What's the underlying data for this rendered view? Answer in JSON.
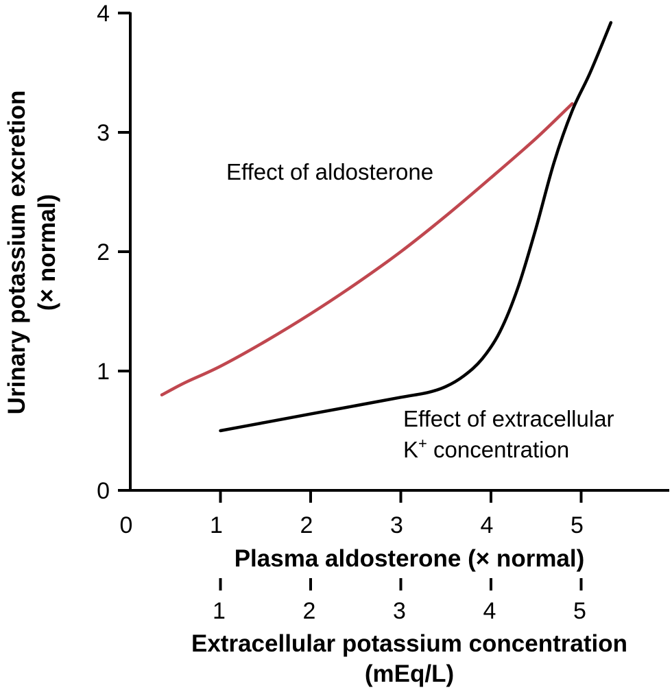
{
  "chart_data": {
    "type": "line",
    "ylabel_line1": "Urinary potassium excretion",
    "ylabel_line2": "(× normal)",
    "xlabel": "Plasma aldosterone (× normal)",
    "xlabel2_line1": "Extracellular potassium concentration",
    "xlabel2_line2": "(mEq/L)",
    "xlim": [
      0,
      6
    ],
    "ylim": [
      0,
      4
    ],
    "xticks": [
      "0",
      "1",
      "2",
      "3",
      "4",
      "5"
    ],
    "xticks2": [
      "1",
      "2",
      "3",
      "4",
      "5"
    ],
    "yticks": [
      "0",
      "1",
      "2",
      "3",
      "4"
    ],
    "series": [
      {
        "name": "Effect of aldosterone",
        "color": "#c0474f",
        "x": [
          0.35,
          0.6,
          1.0,
          1.5,
          2.0,
          2.5,
          3.0,
          3.5,
          4.0,
          4.5,
          4.9
        ],
        "y": [
          0.8,
          0.9,
          1.04,
          1.25,
          1.48,
          1.73,
          2.0,
          2.3,
          2.62,
          2.95,
          3.24
        ]
      },
      {
        "name": "Effect of extracellular K⁺ concentration",
        "color": "#000000",
        "x": [
          1.0,
          1.5,
          2.0,
          2.5,
          3.0,
          3.3,
          3.5,
          3.7,
          3.9,
          4.1,
          4.3,
          4.5,
          4.7,
          4.9,
          5.1,
          5.33
        ],
        "y": [
          0.5,
          0.57,
          0.64,
          0.71,
          0.78,
          0.82,
          0.87,
          0.96,
          1.1,
          1.33,
          1.7,
          2.2,
          2.75,
          3.18,
          3.5,
          3.92
        ]
      }
    ],
    "annotations": {
      "aldosterone": "Effect of aldosterone",
      "potassium_line1": "Effect of extracellular",
      "potassium_line2_prefix": "K",
      "potassium_line2_sup": "+",
      "potassium_line2_suffix": " concentration"
    }
  }
}
